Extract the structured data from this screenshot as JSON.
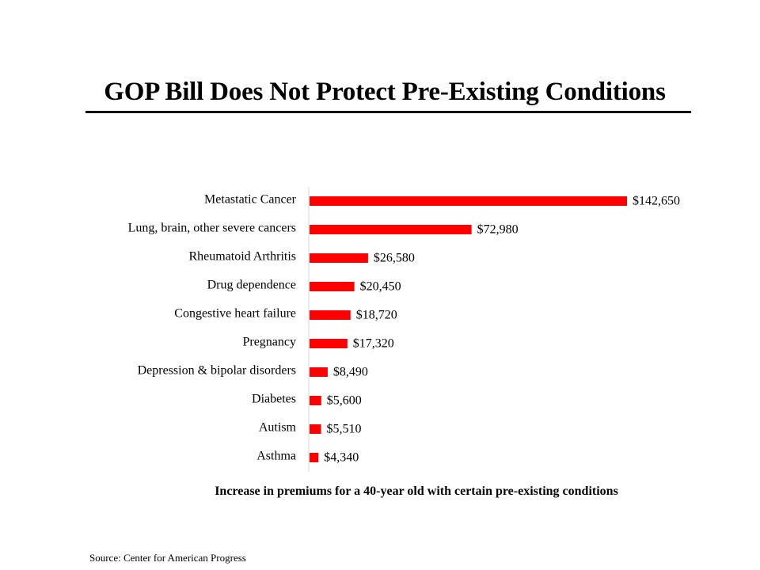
{
  "chart_data": {
    "type": "bar",
    "orientation": "horizontal",
    "title": "GOP Bill Does Not Protect Pre-Existing Conditions",
    "xlabel": "Increase in premiums for a 40-year old with certain pre-existing conditions",
    "ylabel": "",
    "categories": [
      "Metastatic Cancer",
      "Lung, brain, other severe cancers",
      "Rheumatoid Arthritis",
      "Drug dependence",
      "Congestive heart failure",
      "Pregnancy",
      "Depression & bipolar disorders",
      "Diabetes",
      "Autism",
      "Asthma"
    ],
    "values": [
      142650,
      72980,
      26580,
      20450,
      18720,
      17320,
      8490,
      5600,
      5510,
      4340
    ],
    "data_labels": [
      "$142,650",
      "$72,980",
      "$26,580",
      "$20,450",
      "$18,720",
      "$17,320",
      "$8,490",
      "$5,600",
      "$5,510",
      "$4,340"
    ],
    "xlim": [
      0,
      142650
    ],
    "grid": false,
    "legend": "none",
    "bar_color": "#ff0000"
  },
  "source": "Source: Center for American Progress"
}
